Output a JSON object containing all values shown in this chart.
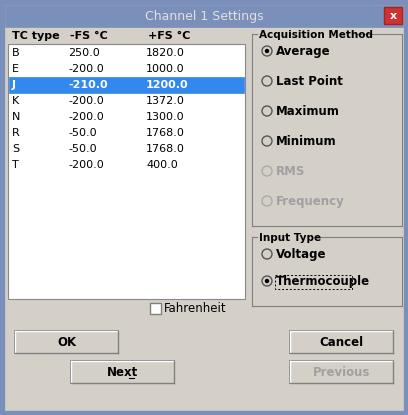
{
  "title": "Channel 1 Settings",
  "bg_color": "#7a8fba",
  "dialog_bg": "#d4d0c8",
  "title_bar_color": "#7a8fba",
  "title_text_color": "#e0e0e0",
  "close_btn_color": "#cc3333",
  "table_headers": [
    "TC type",
    "-FS °C",
    "+FS °C"
  ],
  "table_rows": [
    [
      "B",
      "250.0",
      "1820.0"
    ],
    [
      "E",
      "-200.0",
      "1000.0"
    ],
    [
      "J",
      "-210.0",
      "1200.0"
    ],
    [
      "K",
      "-200.0",
      "1372.0"
    ],
    [
      "N",
      "-200.0",
      "1300.0"
    ],
    [
      "R",
      "-50.0",
      "1768.0"
    ],
    [
      "S",
      "-50.0",
      "1768.0"
    ],
    [
      "T",
      "-200.0",
      "400.0"
    ]
  ],
  "selected_row": 2,
  "selected_bg": "#3388ee",
  "selected_fg": "#ffffff",
  "table_bg": "#ffffff",
  "table_border": "#808080",
  "acq_method_label": "Acquisition Method",
  "acq_methods": [
    "Average",
    "Last Point",
    "Maximum",
    "Minimum",
    "RMS",
    "Frequency"
  ],
  "acq_selected": 0,
  "acq_disabled": [
    4,
    5
  ],
  "input_type_label": "Input Type",
  "input_types": [
    "Voltage",
    "Thermocouple"
  ],
  "input_selected": 1,
  "fahrenheit_label": "Fahrenheit",
  "btn_ok": "OK",
  "btn_cancel": "Cancel",
  "btn_next": "Next",
  "btn_prev": "Previous",
  "btn_prev_disabled": true,
  "disabled_text_color": "#a0a0a0",
  "normal_text_color": "#000000"
}
